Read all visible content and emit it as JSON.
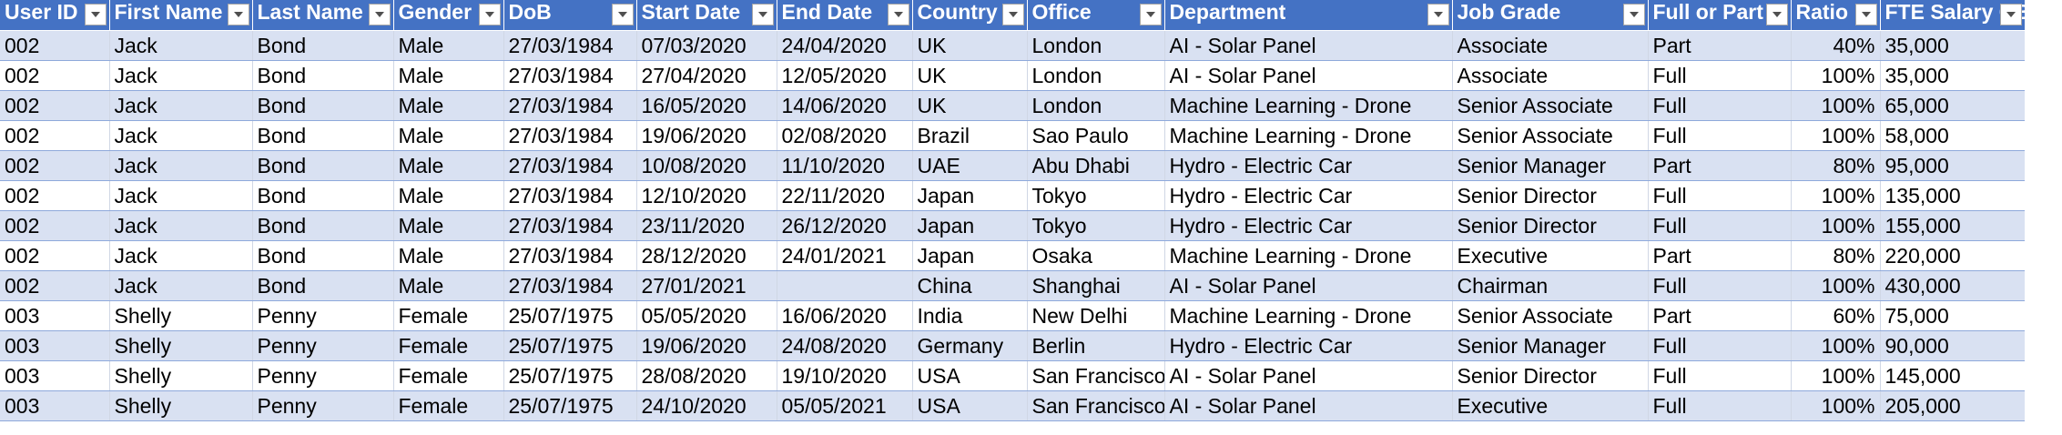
{
  "table": {
    "columns": [
      {
        "key": "user_id",
        "label": "User ID"
      },
      {
        "key": "first_name",
        "label": "First Name"
      },
      {
        "key": "last_name",
        "label": "Last Name"
      },
      {
        "key": "gender",
        "label": "Gender"
      },
      {
        "key": "dob",
        "label": "DoB"
      },
      {
        "key": "start_date",
        "label": "Start Date"
      },
      {
        "key": "end_date",
        "label": "End Date"
      },
      {
        "key": "country",
        "label": "Country"
      },
      {
        "key": "office",
        "label": "Office"
      },
      {
        "key": "department",
        "label": "Department"
      },
      {
        "key": "job_grade",
        "label": "Job Grade"
      },
      {
        "key": "full_or_part",
        "label": "Full or Part"
      },
      {
        "key": "ratio",
        "label": "Ratio"
      },
      {
        "key": "fte_salary",
        "label": "FTE Salary GBP"
      }
    ],
    "filter_icon": "chevron-down-icon",
    "colors": {
      "header_bg": "#4472c4",
      "header_text": "#ffffff",
      "band_bg": "#d9e1f2",
      "row_border": "#8ea9db"
    },
    "rows": [
      [
        "002",
        "Jack",
        "Bond",
        "Male",
        "27/03/1984",
        "07/03/2020",
        "24/04/2020",
        "UK",
        "London",
        "AI - Solar Panel",
        "Associate",
        "Part",
        "40%",
        "35,000"
      ],
      [
        "002",
        "Jack",
        "Bond",
        "Male",
        "27/03/1984",
        "27/04/2020",
        "12/05/2020",
        "UK",
        "London",
        "AI - Solar Panel",
        "Associate",
        "Full",
        "100%",
        "35,000"
      ],
      [
        "002",
        "Jack",
        "Bond",
        "Male",
        "27/03/1984",
        "16/05/2020",
        "14/06/2020",
        "UK",
        "London",
        "Machine Learning - Drone",
        "Senior Associate",
        "Full",
        "100%",
        "65,000"
      ],
      [
        "002",
        "Jack",
        "Bond",
        "Male",
        "27/03/1984",
        "19/06/2020",
        "02/08/2020",
        "Brazil",
        "Sao Paulo",
        "Machine Learning - Drone",
        "Senior Associate",
        "Full",
        "100%",
        "58,000"
      ],
      [
        "002",
        "Jack",
        "Bond",
        "Male",
        "27/03/1984",
        "10/08/2020",
        "11/10/2020",
        "UAE",
        "Abu Dhabi",
        "Hydro - Electric Car",
        "Senior Manager",
        "Part",
        "80%",
        "95,000"
      ],
      [
        "002",
        "Jack",
        "Bond",
        "Male",
        "27/03/1984",
        "12/10/2020",
        "22/11/2020",
        "Japan",
        "Tokyo",
        "Hydro - Electric Car",
        "Senior Director",
        "Full",
        "100%",
        "135,000"
      ],
      [
        "002",
        "Jack",
        "Bond",
        "Male",
        "27/03/1984",
        "23/11/2020",
        "26/12/2020",
        "Japan",
        "Tokyo",
        "Hydro - Electric Car",
        "Senior Director",
        "Full",
        "100%",
        "155,000"
      ],
      [
        "002",
        "Jack",
        "Bond",
        "Male",
        "27/03/1984",
        "28/12/2020",
        "24/01/2021",
        "Japan",
        "Osaka",
        "Machine Learning - Drone",
        "Executive",
        "Part",
        "80%",
        "220,000"
      ],
      [
        "002",
        "Jack",
        "Bond",
        "Male",
        "27/03/1984",
        "27/01/2021",
        "",
        "China",
        "Shanghai",
        "AI - Solar Panel",
        "Chairman",
        "Full",
        "100%",
        "430,000"
      ],
      [
        "003",
        "Shelly",
        "Penny",
        "Female",
        "25/07/1975",
        "05/05/2020",
        "16/06/2020",
        "India",
        "New Delhi",
        "Machine Learning - Drone",
        "Senior Associate",
        "Part",
        "60%",
        "75,000"
      ],
      [
        "003",
        "Shelly",
        "Penny",
        "Female",
        "25/07/1975",
        "19/06/2020",
        "24/08/2020",
        "Germany",
        "Berlin",
        "Hydro - Electric Car",
        "Senior Manager",
        "Full",
        "100%",
        "90,000"
      ],
      [
        "003",
        "Shelly",
        "Penny",
        "Female",
        "25/07/1975",
        "28/08/2020",
        "19/10/2020",
        "USA",
        "San Francisco",
        "AI - Solar Panel",
        "Senior Director",
        "Full",
        "100%",
        "145,000"
      ],
      [
        "003",
        "Shelly",
        "Penny",
        "Female",
        "25/07/1975",
        "24/10/2020",
        "05/05/2021",
        "USA",
        "San Francisco",
        "AI - Solar Panel",
        "Executive",
        "Full",
        "100%",
        "205,000"
      ]
    ]
  }
}
